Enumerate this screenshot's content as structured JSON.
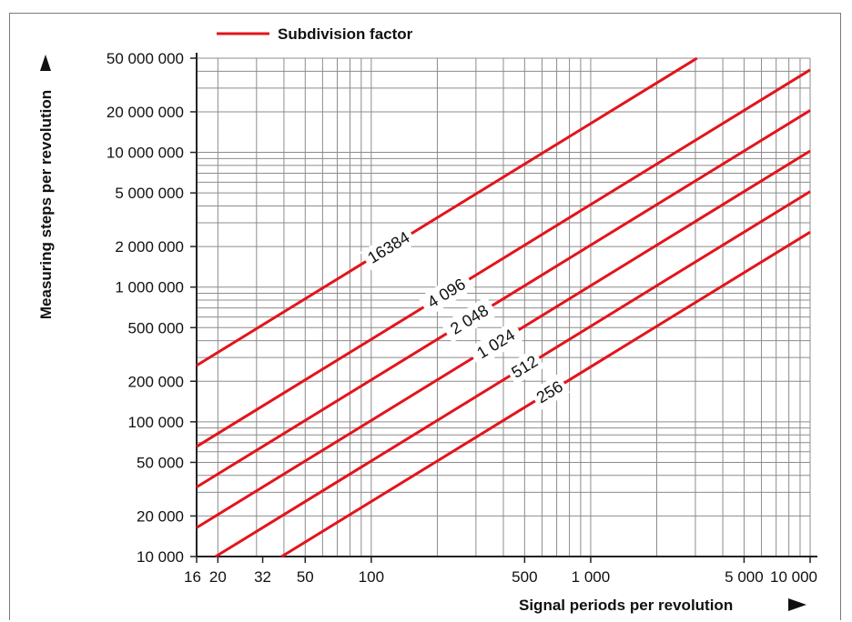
{
  "chart_data": {
    "type": "line",
    "xscale": "log",
    "yscale": "log",
    "xlim": [
      16,
      10000
    ],
    "ylim": [
      10000,
      50000000
    ],
    "grid": true,
    "legend_position": "top-left",
    "xlabel": "Signal periods per revolution",
    "ylabel": "Measuring steps per revolution",
    "legend": {
      "label": "Subdivision factor",
      "color": "#e3141b"
    },
    "line_color": "#e3141b",
    "x_ticks": [
      {
        "value": 16,
        "label": "16"
      },
      {
        "value": 20,
        "label": "20"
      },
      {
        "value": 32,
        "label": "32"
      },
      {
        "value": 50,
        "label": "50"
      },
      {
        "value": 100,
        "label": "100"
      },
      {
        "value": 500,
        "label": "500"
      },
      {
        "value": 1000,
        "label": "1 000"
      },
      {
        "value": 5000,
        "label": "5 000"
      },
      {
        "value": 10000,
        "label": "10 000"
      }
    ],
    "y_ticks": [
      {
        "value": 10000,
        "label": "10 000"
      },
      {
        "value": 20000,
        "label": "20 000"
      },
      {
        "value": 50000,
        "label": "50 000"
      },
      {
        "value": 100000,
        "label": "100 000"
      },
      {
        "value": 200000,
        "label": "200 000"
      },
      {
        "value": 500000,
        "label": "500 000"
      },
      {
        "value": 1000000,
        "label": "1 000 000"
      },
      {
        "value": 2000000,
        "label": "2 000 000"
      },
      {
        "value": 5000000,
        "label": "5 000 000"
      },
      {
        "value": 10000000,
        "label": "10 000 000"
      },
      {
        "value": 20000000,
        "label": "20 000 000"
      },
      {
        "value": 50000000,
        "label": "50 000 000"
      }
    ],
    "series": [
      {
        "name": "16384",
        "label": "16384",
        "factor": 16384,
        "label_x": 120
      },
      {
        "name": "4096",
        "label": "4 096",
        "factor": 4096,
        "label_x": 220
      },
      {
        "name": "2048",
        "label": "2 048",
        "factor": 2048,
        "label_x": 280
      },
      {
        "name": "1024",
        "label": "1 024",
        "factor": 1024,
        "label_x": 370
      },
      {
        "name": "512",
        "label": "512",
        "factor": 512,
        "label_x": 500
      },
      {
        "name": "256",
        "label": "256",
        "factor": 256,
        "label_x": 650
      }
    ]
  }
}
